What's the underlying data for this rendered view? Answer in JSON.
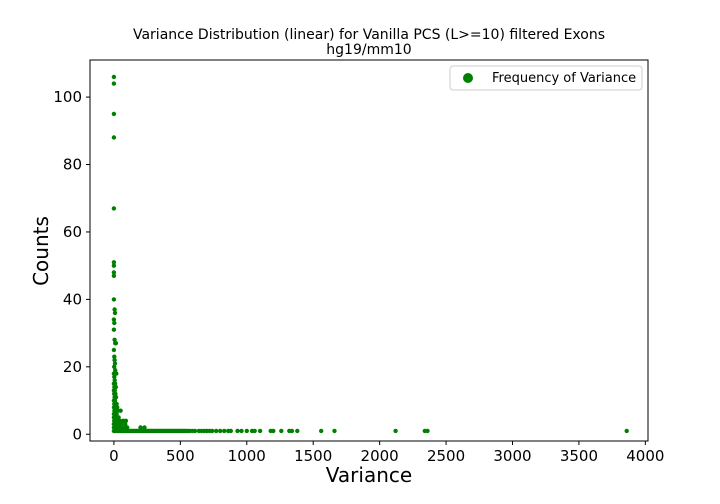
{
  "chart_data": {
    "type": "scatter",
    "title": "Variance Distribution (linear) for Vanilla PCS (L>=10) filtered Exons",
    "subtitle": "hg19/mm10",
    "xlabel": "Variance",
    "ylabel": "Counts",
    "xlim": [
      -180,
      4020
    ],
    "ylim": [
      -2,
      111
    ],
    "xticks": [
      0,
      500,
      1000,
      1500,
      2000,
      2500,
      3000,
      3500,
      4000
    ],
    "yticks": [
      0,
      20,
      40,
      60,
      80,
      100
    ],
    "grid": false,
    "legend_position": "top-right",
    "color": "#008000",
    "series": [
      {
        "name": "Frequency of Variance",
        "points": [
          [
            0,
            106
          ],
          [
            0,
            104
          ],
          [
            0,
            95
          ],
          [
            0,
            88
          ],
          [
            0,
            67
          ],
          [
            0,
            51
          ],
          [
            0,
            50
          ],
          [
            0,
            48
          ],
          [
            0,
            47
          ],
          [
            0,
            40
          ],
          [
            5,
            37
          ],
          [
            8,
            36
          ],
          [
            0,
            34
          ],
          [
            3,
            33
          ],
          [
            0,
            31
          ],
          [
            5,
            28
          ],
          [
            10,
            27
          ],
          [
            15,
            27
          ],
          [
            0,
            25
          ],
          [
            3,
            23
          ],
          [
            5,
            22
          ],
          [
            8,
            21
          ],
          [
            2,
            20
          ],
          [
            10,
            19
          ],
          [
            0,
            18
          ],
          [
            12,
            18
          ],
          [
            18,
            18
          ],
          [
            3,
            17
          ],
          [
            6,
            16
          ],
          [
            0,
            15
          ],
          [
            9,
            15
          ],
          [
            4,
            14
          ],
          [
            14,
            14
          ],
          [
            0,
            13
          ],
          [
            7,
            13
          ],
          [
            2,
            12
          ],
          [
            11,
            12
          ],
          [
            5,
            11
          ],
          [
            16,
            11
          ],
          [
            0,
            10
          ],
          [
            8,
            10
          ],
          [
            3,
            9
          ],
          [
            13,
            9
          ],
          [
            20,
            9
          ],
          [
            1,
            8
          ],
          [
            10,
            8
          ],
          [
            25,
            8
          ],
          [
            4,
            7
          ],
          [
            15,
            7
          ],
          [
            30,
            7
          ],
          [
            50,
            7
          ],
          [
            0,
            6
          ],
          [
            8,
            6
          ],
          [
            20,
            6
          ],
          [
            0,
            5
          ],
          [
            6,
            5
          ],
          [
            12,
            5
          ],
          [
            35,
            5
          ],
          [
            2,
            4
          ],
          [
            10,
            4
          ],
          [
            22,
            4
          ],
          [
            45,
            4
          ],
          [
            70,
            4
          ],
          [
            90,
            4
          ],
          [
            0,
            3
          ],
          [
            5,
            3
          ],
          [
            15,
            3
          ],
          [
            30,
            3
          ],
          [
            55,
            3
          ],
          [
            85,
            3
          ],
          [
            0,
            2
          ],
          [
            8,
            2
          ],
          [
            18,
            2
          ],
          [
            40,
            2
          ],
          [
            60,
            2
          ],
          [
            80,
            2
          ],
          [
            100,
            2
          ],
          [
            200,
            2
          ],
          [
            230,
            2
          ],
          [
            0,
            1
          ],
          [
            5,
            1
          ],
          [
            10,
            1
          ],
          [
            20,
            1
          ],
          [
            30,
            1
          ],
          [
            40,
            1
          ],
          [
            50,
            1
          ],
          [
            60,
            1
          ],
          [
            70,
            1
          ],
          [
            80,
            1
          ],
          [
            90,
            1
          ],
          [
            100,
            1
          ],
          [
            110,
            1
          ],
          [
            120,
            1
          ],
          [
            130,
            1
          ],
          [
            140,
            1
          ],
          [
            150,
            1
          ],
          [
            160,
            1
          ],
          [
            170,
            1
          ],
          [
            180,
            1
          ],
          [
            190,
            1
          ],
          [
            200,
            1
          ],
          [
            210,
            1
          ],
          [
            220,
            1
          ],
          [
            230,
            1
          ],
          [
            240,
            1
          ],
          [
            250,
            1
          ],
          [
            260,
            1
          ],
          [
            270,
            1
          ],
          [
            280,
            1
          ],
          [
            290,
            1
          ],
          [
            300,
            1
          ],
          [
            310,
            1
          ],
          [
            320,
            1
          ],
          [
            330,
            1
          ],
          [
            340,
            1
          ],
          [
            350,
            1
          ],
          [
            360,
            1
          ],
          [
            370,
            1
          ],
          [
            380,
            1
          ],
          [
            390,
            1
          ],
          [
            400,
            1
          ],
          [
            410,
            1
          ],
          [
            420,
            1
          ],
          [
            430,
            1
          ],
          [
            440,
            1
          ],
          [
            450,
            1
          ],
          [
            460,
            1
          ],
          [
            470,
            1
          ],
          [
            480,
            1
          ],
          [
            490,
            1
          ],
          [
            500,
            1
          ],
          [
            510,
            1
          ],
          [
            520,
            1
          ],
          [
            530,
            1
          ],
          [
            540,
            1
          ],
          [
            555,
            1
          ],
          [
            570,
            1
          ],
          [
            590,
            1
          ],
          [
            610,
            1
          ],
          [
            640,
            1
          ],
          [
            660,
            1
          ],
          [
            680,
            1
          ],
          [
            700,
            1
          ],
          [
            720,
            1
          ],
          [
            740,
            1
          ],
          [
            770,
            1
          ],
          [
            800,
            1
          ],
          [
            830,
            1
          ],
          [
            860,
            1
          ],
          [
            880,
            1
          ],
          [
            930,
            1
          ],
          [
            960,
            1
          ],
          [
            1000,
            1
          ],
          [
            1040,
            1
          ],
          [
            1060,
            1
          ],
          [
            1100,
            1
          ],
          [
            1180,
            1
          ],
          [
            1200,
            1
          ],
          [
            1260,
            1
          ],
          [
            1320,
            1
          ],
          [
            1340,
            1
          ],
          [
            1380,
            1
          ],
          [
            1560,
            1
          ],
          [
            1660,
            1
          ],
          [
            2120,
            1
          ],
          [
            2340,
            1
          ],
          [
            2360,
            1
          ],
          [
            3860,
            1
          ]
        ]
      }
    ]
  }
}
